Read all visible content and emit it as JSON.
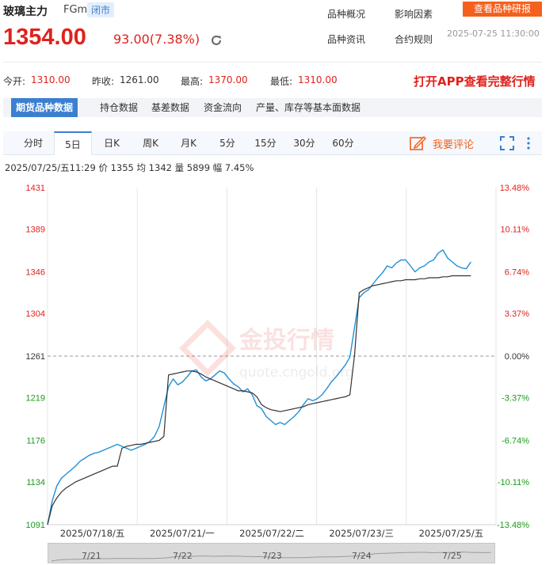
{
  "header": {
    "name": "玻璃主力",
    "code": "FGm",
    "status_badge": "闭市",
    "links": [
      "品种概况",
      "影响因素",
      "品种资讯",
      "合约规则"
    ],
    "research_button": "查看品种研报",
    "price": "1354.00",
    "change": "93.00(7.38%)",
    "update_time": "2025-07-25 11:30:00"
  },
  "stats": [
    {
      "label": "今开:",
      "value": "1310.00",
      "color": "#e0221d"
    },
    {
      "label": "昨收:",
      "value": "1261.00",
      "color": "#333333"
    },
    {
      "label": "最高:",
      "value": "1370.00",
      "color": "#e0221d"
    },
    {
      "label": "最低:",
      "value": "1310.00",
      "color": "#e0221d"
    }
  ],
  "open_app": "打开APP查看完整行情",
  "tabs": [
    "期货品种数据",
    "持仓数据",
    "基差数据",
    "资金流向",
    "产量、库存等基本面数据"
  ],
  "period_tabs": [
    "分时",
    "5日",
    "日K",
    "周K",
    "月K",
    "5分",
    "15分",
    "30分",
    "60分"
  ],
  "active_period": "5日",
  "comment_label": "我要评论",
  "info_line": "2025/07/25/五11:29  价 1355  均 1342  量 5899  幅 7.45%",
  "watermark": {
    "text": "金投行情",
    "sub": "quote.cngold.org"
  },
  "colors": {
    "up": "#e0221d",
    "down": "#1a9b1a",
    "price_line": "#1f8fd6",
    "avg_line": "#333333",
    "accent": "#3b7fd0",
    "orange": "#f5601d"
  },
  "chart_data": {
    "type": "line",
    "title": "",
    "ylim": [
      1091,
      1431
    ],
    "prev_close": 1261,
    "y_ticks": [
      1431,
      1389,
      1346,
      1304,
      1261,
      1219,
      1176,
      1134,
      1091
    ],
    "pct_ticks": [
      "13.48%",
      "10.11%",
      "6.74%",
      "3.37%",
      "0.00%",
      "-3.37%",
      "-6.74%",
      "-10.11%",
      "-13.48%"
    ],
    "day_labels": [
      "2025/07/18/五",
      "2025/07/21/一",
      "2025/07/22/二",
      "2025/07/23/三",
      "2025/07/25/五"
    ],
    "navigator_labels": [
      "7/21",
      "7/22",
      "7/23",
      "7/24",
      "7/25"
    ],
    "grid": true,
    "series": [
      {
        "values": [
          1091,
          1115,
          1130,
          1138,
          1142,
          1146,
          1150,
          1155,
          1158,
          1161,
          1163,
          1164,
          1166,
          1168,
          1170,
          1172,
          1170,
          1168,
          1166,
          1168,
          1170,
          1172,
          1175,
          1180,
          1190,
          1210,
          1230,
          1238,
          1232,
          1235,
          1240,
          1246,
          1247,
          1240,
          1236,
          1238,
          1242,
          1246,
          1244,
          1238,
          1233,
          1230,
          1225,
          1228,
          1222,
          1211,
          1208,
          1200,
          1196,
          1192,
          1194,
          1192,
          1196,
          1200,
          1205,
          1212,
          1218,
          1216,
          1218,
          1222,
          1228,
          1235,
          1240,
          1246,
          1252,
          1260,
          1290,
          1320,
          1325,
          1328,
          1334,
          1340,
          1345,
          1352,
          1350,
          1355,
          1358,
          1358,
          1352,
          1346,
          1350,
          1352,
          1356,
          1358,
          1365,
          1368,
          1360,
          1356,
          1352,
          1350,
          1349,
          1356
        ]
      },
      {
        "values": [
          1091,
          1110,
          1118,
          1124,
          1128,
          1131,
          1134,
          1136,
          1138,
          1140,
          1142,
          1144,
          1146,
          1148,
          1150,
          1150,
          1168,
          1170,
          1171,
          1172,
          1172,
          1173,
          1174,
          1175,
          1176,
          1180,
          1242,
          1243,
          1244,
          1245,
          1246,
          1246,
          1245,
          1243,
          1240,
          1238,
          1236,
          1234,
          1232,
          1230,
          1228,
          1226,
          1226,
          1225,
          1224,
          1220,
          1212,
          1209,
          1207,
          1206,
          1205,
          1206,
          1207,
          1208,
          1209,
          1210,
          1212,
          1213,
          1214,
          1215,
          1216,
          1217,
          1218,
          1219,
          1220,
          1222,
          1262,
          1325,
          1328,
          1330,
          1332,
          1333,
          1334,
          1335,
          1336,
          1337,
          1337,
          1338,
          1338,
          1338,
          1339,
          1339,
          1340,
          1340,
          1340,
          1341,
          1341,
          1342,
          1342,
          1342,
          1342,
          1342
        ]
      }
    ]
  }
}
